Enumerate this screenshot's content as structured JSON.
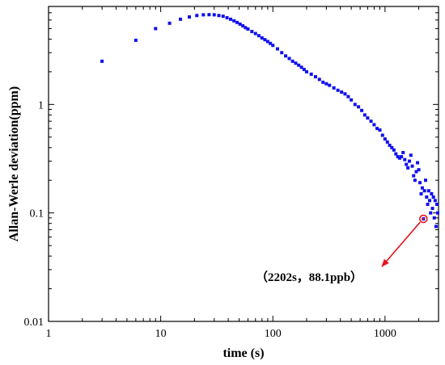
{
  "chart_data": {
    "type": "scatter",
    "xscale": "log",
    "yscale": "log",
    "xlim": [
      1,
      3000
    ],
    "ylim": [
      0.01,
      8
    ],
    "xlabel": "time (s)",
    "ylabel": "Allan-Werle deviation(ppm)",
    "x_ticks": [
      {
        "value": 1,
        "label": "1"
      },
      {
        "value": 10,
        "label": "10"
      },
      {
        "value": 100,
        "label": "100"
      },
      {
        "value": 1000,
        "label": "1000"
      }
    ],
    "y_ticks": [
      {
        "value": 0.01,
        "label": "0.01"
      },
      {
        "value": 0.1,
        "label": "0.1"
      },
      {
        "value": 1,
        "label": "1"
      }
    ],
    "marker_color": "#1010ee",
    "grid": false,
    "series": [
      {
        "points": [
          [
            3,
            2.5
          ],
          [
            6,
            3.9
          ],
          [
            9,
            5.0
          ],
          [
            12,
            5.6
          ],
          [
            15,
            6.1
          ],
          [
            18,
            6.4
          ],
          [
            21,
            6.6
          ],
          [
            24,
            6.7
          ],
          [
            27,
            6.72
          ],
          [
            30,
            6.7
          ],
          [
            33,
            6.6
          ],
          [
            36,
            6.5
          ],
          [
            39,
            6.3
          ],
          [
            42,
            6.1
          ],
          [
            45,
            5.9
          ],
          [
            48,
            5.7
          ],
          [
            51,
            5.5
          ],
          [
            54,
            5.3
          ],
          [
            57,
            5.1
          ],
          [
            60,
            4.95
          ],
          [
            65,
            4.7
          ],
          [
            70,
            4.5
          ],
          [
            75,
            4.3
          ],
          [
            80,
            4.1
          ],
          [
            85,
            3.95
          ],
          [
            90,
            3.8
          ],
          [
            95,
            3.65
          ],
          [
            100,
            3.5
          ],
          [
            110,
            3.25
          ],
          [
            120,
            3.0
          ],
          [
            130,
            2.8
          ],
          [
            140,
            2.65
          ],
          [
            150,
            2.5
          ],
          [
            160,
            2.4
          ],
          [
            170,
            2.3
          ],
          [
            180,
            2.2
          ],
          [
            190,
            2.1
          ],
          [
            200,
            2.0
          ],
          [
            220,
            1.9
          ],
          [
            240,
            1.8
          ],
          [
            260,
            1.7
          ],
          [
            280,
            1.6
          ],
          [
            300,
            1.55
          ],
          [
            320,
            1.5
          ],
          [
            350,
            1.42
          ],
          [
            380,
            1.35
          ],
          [
            410,
            1.3
          ],
          [
            440,
            1.25
          ],
          [
            470,
            1.18
          ],
          [
            500,
            1.1
          ],
          [
            540,
            1.0
          ],
          [
            580,
            0.95
          ],
          [
            620,
            0.88
          ],
          [
            660,
            0.8
          ],
          [
            700,
            0.75
          ],
          [
            750,
            0.7
          ],
          [
            800,
            0.65
          ],
          [
            850,
            0.6
          ],
          [
            900,
            0.58
          ],
          [
            950,
            0.52
          ],
          [
            1000,
            0.48
          ],
          [
            1050,
            0.45
          ],
          [
            1100,
            0.42
          ],
          [
            1150,
            0.4
          ],
          [
            1200,
            0.38
          ],
          [
            1250,
            0.35
          ],
          [
            1300,
            0.33
          ],
          [
            1350,
            0.32
          ],
          [
            1400,
            0.33
          ],
          [
            1450,
            0.36
          ],
          [
            1500,
            0.31
          ],
          [
            1550,
            0.28
          ],
          [
            1600,
            0.26
          ],
          [
            1650,
            0.3
          ],
          [
            1700,
            0.34
          ],
          [
            1750,
            0.27
          ],
          [
            1800,
            0.22
          ],
          [
            1850,
            0.2
          ],
          [
            1900,
            0.24
          ],
          [
            1950,
            0.29
          ],
          [
            2000,
            0.25
          ],
          [
            2050,
            0.19
          ],
          [
            2100,
            0.15
          ],
          [
            2150,
            0.17
          ],
          [
            2202,
            0.0881
          ],
          [
            2250,
            0.16
          ],
          [
            2300,
            0.2
          ],
          [
            2350,
            0.14
          ],
          [
            2400,
            0.12
          ],
          [
            2450,
            0.16
          ],
          [
            2500,
            0.13
          ],
          [
            2550,
            0.1
          ],
          [
            2600,
            0.15
          ],
          [
            2650,
            0.11
          ],
          [
            2700,
            0.14
          ],
          [
            2750,
            0.09
          ],
          [
            2800,
            0.13
          ],
          [
            2850,
            0.075
          ],
          [
            2900,
            0.12
          ],
          [
            2950,
            0.1
          ]
        ]
      }
    ],
    "annotation": {
      "point": [
        2202,
        0.0881
      ],
      "text": "（2202s，88.1ppb）",
      "marker_color": "#e8141e",
      "arrow_color": "#e8141e"
    }
  }
}
